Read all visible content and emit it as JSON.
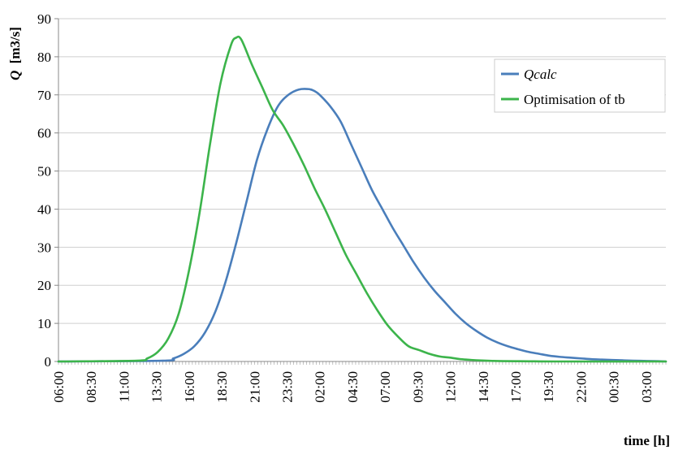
{
  "chart_data": {
    "type": "line",
    "title": "",
    "ylabel_symbol": "Q",
    "ylabel_unit": "[m3/s]",
    "xlabel": "time [h]",
    "ylim": [
      0,
      90
    ],
    "yticks": [
      0,
      10,
      20,
      30,
      40,
      50,
      60,
      70,
      80,
      90
    ],
    "grid": "horizontal",
    "legend_position": "top-right",
    "xtick_labels": [
      "06:00",
      "08:30",
      "11:00",
      "13:30",
      "16:00",
      "18:30",
      "21:00",
      "23:30",
      "02:00",
      "04:30",
      "07:00",
      "09:30",
      "12:00",
      "14:30",
      "17:00",
      "19:30",
      "22:00",
      "00:30",
      "03:00"
    ],
    "x_step_hours": 2.5,
    "x_end_hours": 46.5,
    "series": [
      {
        "name": "Qcalc",
        "italic": true,
        "color": "#4a7ebb",
        "x_hours": [
          0,
          8,
          8.8,
          9.6,
          10.4,
          11.2,
          12,
          12.8,
          13.6,
          14.4,
          15.2,
          16,
          16.8,
          17.6,
          18.4,
          19.2,
          19.6,
          20,
          20.8,
          21.6,
          22.4,
          23.2,
          24,
          24.8,
          25.6,
          26.4,
          27.2,
          28,
          28.8,
          29.6,
          30.4,
          31.2,
          32,
          32.8,
          33.6,
          34.4,
          35.2,
          36,
          36.8,
          37.6,
          38.4,
          39.2,
          40,
          40.8,
          41.6,
          42.4,
          43.2,
          44,
          44.8,
          45.6,
          46.5
        ],
        "values": [
          0,
          0.2,
          0.8,
          2,
          4,
          7.5,
          13,
          21,
          31,
          42,
          53,
          61,
          67,
          70,
          71.4,
          71.5,
          71,
          70,
          67,
          63,
          57,
          51,
          45,
          40,
          35,
          30.5,
          26,
          22,
          18.5,
          15.5,
          12.5,
          10,
          8,
          6.3,
          5,
          4,
          3.2,
          2.5,
          2,
          1.5,
          1.2,
          1,
          0.8,
          0.6,
          0.5,
          0.4,
          0.3,
          0.2,
          0.15,
          0.1,
          0
        ]
      },
      {
        "name": "Optimisation of tb",
        "italic": false,
        "color": "#3cb44b",
        "x_hours": [
          0,
          6,
          6.8,
          7.6,
          8.4,
          9.2,
          10,
          10.8,
          11.6,
          12.4,
          13.2,
          13.6,
          14,
          14.8,
          15.6,
          16.4,
          17.2,
          18,
          18.8,
          19.6,
          20.4,
          21.2,
          22,
          22.8,
          23.6,
          24.4,
          25.2,
          26,
          26.8,
          27.6,
          28.4,
          29.2,
          30,
          30.8,
          31.6,
          32.4,
          33.2,
          34,
          36,
          38,
          46.5
        ],
        "values": [
          0,
          0.2,
          0.8,
          2.5,
          6,
          12.5,
          24,
          39,
          57,
          73,
          83,
          85,
          84.5,
          78,
          72,
          66,
          62,
          57,
          51.5,
          45.5,
          40,
          34,
          28,
          23,
          18,
          13.5,
          9.5,
          6.5,
          4,
          3,
          2,
          1.3,
          1,
          0.6,
          0.4,
          0.25,
          0.15,
          0.1,
          0.05,
          0,
          0
        ]
      }
    ]
  }
}
